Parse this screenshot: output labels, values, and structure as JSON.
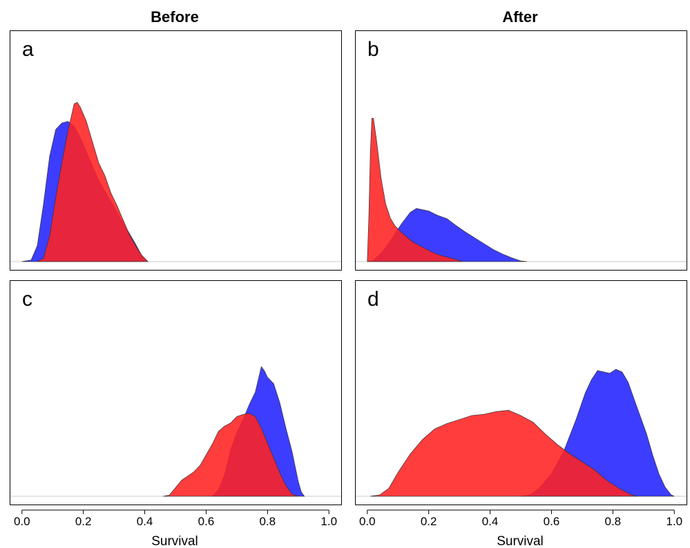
{
  "figure": {
    "column_titles": [
      "Before",
      "After"
    ],
    "xlabel": "Survival",
    "colors": {
      "blue": "#2222ff",
      "red": "#ff2222",
      "baseline": "#c8c8c8"
    }
  },
  "chart_data": [
    {
      "panel": "a",
      "column": "Before",
      "type": "area",
      "xlim": [
        -0.04,
        1.04
      ],
      "ymax": 4.5,
      "x_ticks": [
        "0.0",
        "0.2",
        "0.4",
        "0.6",
        "0.8",
        "1.0"
      ],
      "show_x_axis": false,
      "series": [
        {
          "color": "blue",
          "points": [
            [
              0.0,
              0
            ],
            [
              0.03,
              0.05
            ],
            [
              0.05,
              0.5
            ],
            [
              0.07,
              1.8
            ],
            [
              0.09,
              3.3
            ],
            [
              0.11,
              4.15
            ],
            [
              0.13,
              4.35
            ],
            [
              0.15,
              4.4
            ],
            [
              0.17,
              4.25
            ],
            [
              0.19,
              3.9
            ],
            [
              0.21,
              3.45
            ],
            [
              0.23,
              3.0
            ],
            [
              0.25,
              2.55
            ],
            [
              0.28,
              2.05
            ],
            [
              0.31,
              1.55
            ],
            [
              0.34,
              1.05
            ],
            [
              0.37,
              0.55
            ],
            [
              0.39,
              0.2
            ],
            [
              0.41,
              0
            ]
          ]
        },
        {
          "color": "red",
          "points": [
            [
              0.05,
              0
            ],
            [
              0.07,
              0.1
            ],
            [
              0.09,
              0.8
            ],
            [
              0.11,
              2.0
            ],
            [
              0.13,
              3.1
            ],
            [
              0.15,
              4.1
            ],
            [
              0.17,
              4.95
            ],
            [
              0.18,
              5.0
            ],
            [
              0.19,
              4.85
            ],
            [
              0.21,
              4.4
            ],
            [
              0.23,
              3.75
            ],
            [
              0.25,
              3.1
            ],
            [
              0.27,
              2.7
            ],
            [
              0.29,
              2.15
            ],
            [
              0.31,
              1.75
            ],
            [
              0.33,
              1.3
            ],
            [
              0.35,
              0.85
            ],
            [
              0.37,
              0.5
            ],
            [
              0.39,
              0.2
            ],
            [
              0.41,
              0
            ]
          ]
        }
      ]
    },
    {
      "panel": "b",
      "column": "After",
      "type": "area",
      "xlim": [
        -0.04,
        1.04
      ],
      "ymax": 11.2,
      "x_ticks": [
        "0.0",
        "0.2",
        "0.4",
        "0.6",
        "0.8",
        "1.0"
      ],
      "show_x_axis": false,
      "series": [
        {
          "color": "blue",
          "points": [
            [
              0.0,
              0
            ],
            [
              0.02,
              0.1
            ],
            [
              0.05,
              0.8
            ],
            [
              0.08,
              1.8
            ],
            [
              0.11,
              2.9
            ],
            [
              0.14,
              3.85
            ],
            [
              0.16,
              4.15
            ],
            [
              0.18,
              4.05
            ],
            [
              0.2,
              3.95
            ],
            [
              0.23,
              3.6
            ],
            [
              0.26,
              3.35
            ],
            [
              0.29,
              2.8
            ],
            [
              0.32,
              2.3
            ],
            [
              0.35,
              1.85
            ],
            [
              0.38,
              1.4
            ],
            [
              0.41,
              0.95
            ],
            [
              0.44,
              0.6
            ],
            [
              0.47,
              0.3
            ],
            [
              0.5,
              0.05
            ],
            [
              0.52,
              0
            ]
          ]
        },
        {
          "color": "red",
          "points": [
            [
              0.0,
              0
            ],
            [
              0.005,
              3.5
            ],
            [
              0.01,
              8.5
            ],
            [
              0.015,
              11.2
            ],
            [
              0.02,
              11.2
            ],
            [
              0.03,
              9.5
            ],
            [
              0.045,
              6.5
            ],
            [
              0.06,
              4.5
            ],
            [
              0.075,
              3.4
            ],
            [
              0.09,
              2.8
            ],
            [
              0.11,
              2.3
            ],
            [
              0.13,
              1.9
            ],
            [
              0.15,
              1.5
            ],
            [
              0.17,
              1.25
            ],
            [
              0.19,
              1.0
            ],
            [
              0.21,
              0.75
            ],
            [
              0.23,
              0.55
            ],
            [
              0.26,
              0.35
            ],
            [
              0.29,
              0.15
            ],
            [
              0.31,
              0
            ]
          ]
        }
      ]
    },
    {
      "panel": "c",
      "column": "Before",
      "type": "area",
      "xlim": [
        -0.04,
        1.04
      ],
      "ymax": 6.1,
      "x_ticks": [
        "0.0",
        "0.2",
        "0.4",
        "0.6",
        "0.8",
        "1.0"
      ],
      "show_x_axis": true,
      "series": [
        {
          "color": "blue",
          "points": [
            [
              0.62,
              0
            ],
            [
              0.64,
              0.3
            ],
            [
              0.66,
              1.0
            ],
            [
              0.68,
              2.2
            ],
            [
              0.7,
              3.0
            ],
            [
              0.72,
              3.6
            ],
            [
              0.74,
              4.3
            ],
            [
              0.76,
              4.9
            ],
            [
              0.77,
              5.5
            ],
            [
              0.78,
              6.1
            ],
            [
              0.79,
              5.9
            ],
            [
              0.8,
              5.6
            ],
            [
              0.82,
              5.3
            ],
            [
              0.84,
              4.4
            ],
            [
              0.86,
              3.2
            ],
            [
              0.88,
              2.1
            ],
            [
              0.9,
              0.7
            ],
            [
              0.91,
              0.2
            ],
            [
              0.92,
              0
            ]
          ]
        },
        {
          "color": "red",
          "points": [
            [
              0.46,
              0
            ],
            [
              0.48,
              0.05
            ],
            [
              0.5,
              0.4
            ],
            [
              0.52,
              0.75
            ],
            [
              0.54,
              0.95
            ],
            [
              0.56,
              1.15
            ],
            [
              0.58,
              1.45
            ],
            [
              0.6,
              1.95
            ],
            [
              0.62,
              2.45
            ],
            [
              0.64,
              3.05
            ],
            [
              0.66,
              3.3
            ],
            [
              0.68,
              3.45
            ],
            [
              0.7,
              3.75
            ],
            [
              0.72,
              3.85
            ],
            [
              0.74,
              3.9
            ],
            [
              0.76,
              3.75
            ],
            [
              0.78,
              3.2
            ],
            [
              0.8,
              2.5
            ],
            [
              0.82,
              1.8
            ],
            [
              0.84,
              1.1
            ],
            [
              0.86,
              0.5
            ],
            [
              0.88,
              0.1
            ],
            [
              0.9,
              0
            ]
          ]
        }
      ]
    },
    {
      "panel": "d",
      "column": "After",
      "type": "area",
      "xlim": [
        -0.04,
        1.04
      ],
      "ymax": 4.9,
      "x_ticks": [
        "0.0",
        "0.2",
        "0.4",
        "0.6",
        "0.8",
        "1.0"
      ],
      "show_x_axis": true,
      "series": [
        {
          "color": "blue",
          "points": [
            [
              0.5,
              0
            ],
            [
              0.53,
              0.05
            ],
            [
              0.56,
              0.3
            ],
            [
              0.6,
              0.85
            ],
            [
              0.64,
              1.7
            ],
            [
              0.68,
              2.9
            ],
            [
              0.71,
              3.9
            ],
            [
              0.73,
              4.4
            ],
            [
              0.75,
              4.75
            ],
            [
              0.77,
              4.7
            ],
            [
              0.79,
              4.65
            ],
            [
              0.81,
              4.8
            ],
            [
              0.83,
              4.7
            ],
            [
              0.85,
              4.3
            ],
            [
              0.87,
              3.65
            ],
            [
              0.89,
              3.0
            ],
            [
              0.91,
              2.35
            ],
            [
              0.93,
              1.55
            ],
            [
              0.95,
              0.85
            ],
            [
              0.97,
              0.35
            ],
            [
              0.99,
              0.05
            ],
            [
              1.0,
              0
            ]
          ]
        },
        {
          "color": "red",
          "points": [
            [
              0.01,
              0
            ],
            [
              0.04,
              0.05
            ],
            [
              0.07,
              0.3
            ],
            [
              0.1,
              0.9
            ],
            [
              0.14,
              1.6
            ],
            [
              0.18,
              2.15
            ],
            [
              0.22,
              2.55
            ],
            [
              0.26,
              2.75
            ],
            [
              0.3,
              2.9
            ],
            [
              0.34,
              3.05
            ],
            [
              0.38,
              3.1
            ],
            [
              0.42,
              3.2
            ],
            [
              0.46,
              3.25
            ],
            [
              0.5,
              3.05
            ],
            [
              0.54,
              2.8
            ],
            [
              0.58,
              2.35
            ],
            [
              0.62,
              1.95
            ],
            [
              0.66,
              1.6
            ],
            [
              0.7,
              1.3
            ],
            [
              0.74,
              1.0
            ],
            [
              0.78,
              0.6
            ],
            [
              0.82,
              0.3
            ],
            [
              0.86,
              0.05
            ],
            [
              0.88,
              0
            ]
          ]
        }
      ]
    }
  ]
}
